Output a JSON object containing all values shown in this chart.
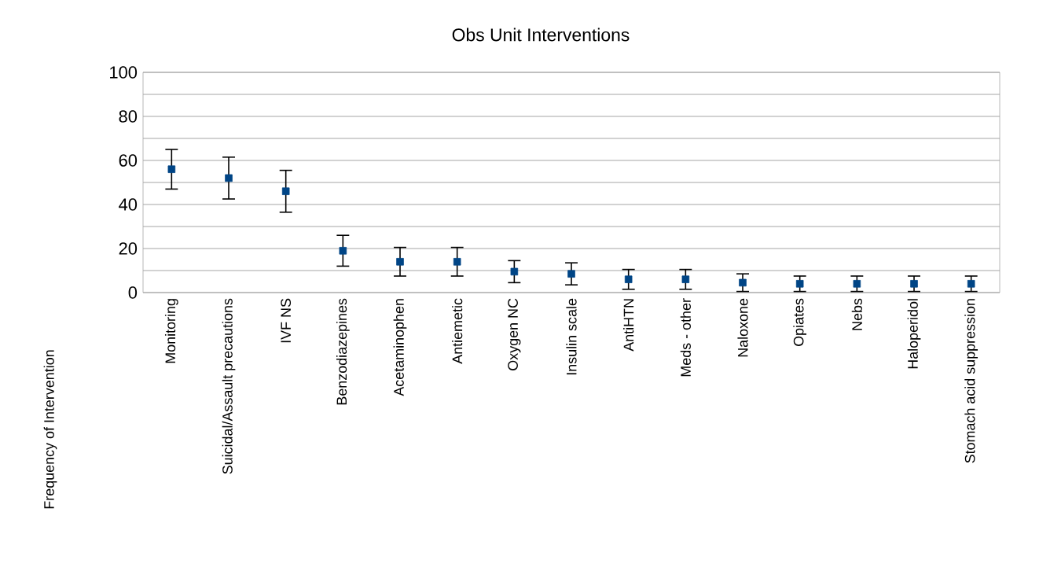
{
  "chart_data": {
    "type": "scatter",
    "title": "Obs Unit Interventions",
    "ylabel": "Frequency of Intervention",
    "categories": [
      "Monitoring",
      "Suicidal/Assault precautions",
      "IVF NS",
      "Benzodiazepines",
      "Acetaminophen",
      "Antiemetic",
      "Oxygen NC",
      "Insulin scale",
      "AntiHTN",
      "Meds - other",
      "Naloxone",
      "Opiates",
      "Nebs",
      "Haloperidol",
      "Stomach acid suppression"
    ],
    "values": [
      56,
      52,
      46,
      19,
      14,
      14,
      9.5,
      8.5,
      6,
      6,
      4.5,
      4,
      4,
      4,
      4
    ],
    "errors": [
      9,
      9.5,
      9.5,
      7,
      6.5,
      6.5,
      5,
      5,
      4.5,
      4.5,
      4,
      3.5,
      3.5,
      3.5,
      3.5
    ],
    "color": "#004586",
    "marker": "square",
    "ylim": [
      0,
      100
    ],
    "yticks": [
      0,
      {
        "value": 10,
        "label": null
      },
      20,
      {
        "value": 30,
        "label": null
      },
      40,
      {
        "value": 50,
        "label": null
      },
      60,
      {
        "value": 70,
        "label": null
      },
      80,
      {
        "value": 90,
        "label": null
      },
      100
    ],
    "grid": "y"
  }
}
